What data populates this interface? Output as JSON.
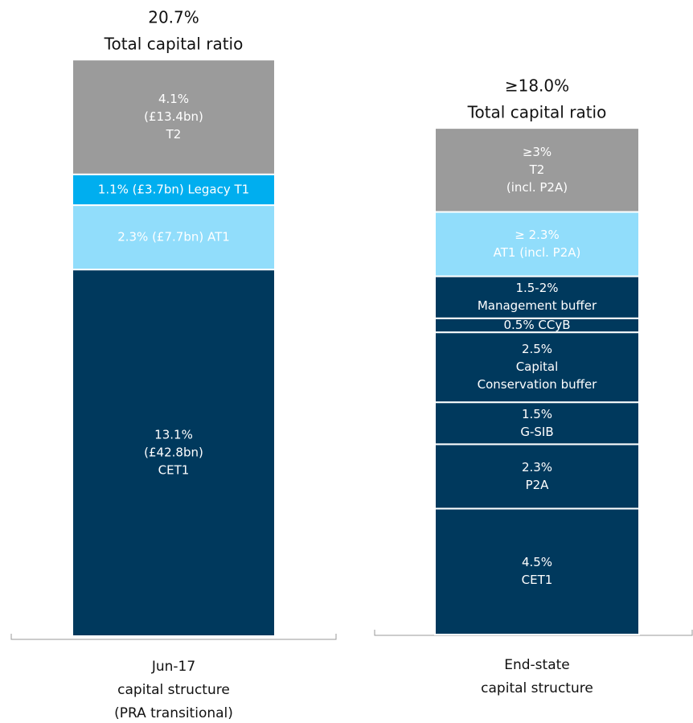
{
  "chart_data": {
    "type": "bar",
    "bars": [
      {
        "title": [
          "20.7%",
          "Total capital ratio"
        ],
        "category": [
          "Jun-17",
          "capital structure",
          "(PRA transitional)"
        ],
        "segments": [
          {
            "value": 13.1,
            "label": [
              "13.1%",
              "(£42.8bn)",
              "CET1"
            ],
            "color": "#00395d"
          },
          {
            "value": 2.3,
            "label": [
              "2.3% (£7.7bn) AT1"
            ],
            "color": "#91ddfb"
          },
          {
            "value": 1.1,
            "label": [
              "1.1% (£3.7bn) Legacy T1"
            ],
            "color": "#00aeef"
          },
          {
            "value": 4.1,
            "label": [
              "4.1%",
              "(£13.4bn)",
              "T2"
            ],
            "color": "#9b9b9b"
          }
        ]
      },
      {
        "title": [
          "≥18.0%",
          "Total capital ratio"
        ],
        "category": [
          "End-state",
          "capital structure"
        ],
        "segments": [
          {
            "value": 4.5,
            "label": [
              "4.5%",
              "CET1"
            ],
            "color": "#00395d"
          },
          {
            "value": 2.3,
            "label": [
              "2.3%",
              "P2A"
            ],
            "color": "#00395d"
          },
          {
            "value": 1.5,
            "label": [
              "1.5%",
              "G-SIB"
            ],
            "color": "#00395d"
          },
          {
            "value": 2.5,
            "label": [
              "2.5%",
              "Capital",
              "Conservation buffer"
            ],
            "color": "#00395d"
          },
          {
            "value": 0.5,
            "label": [
              "0.5% CCyB"
            ],
            "color": "#00395d"
          },
          {
            "value": 1.5,
            "label": [
              "1.5-2%",
              "Management buffer"
            ],
            "color": "#00395d"
          },
          {
            "value": 2.3,
            "label": [
              "≥ 2.3%",
              "AT1 (incl. P2A)"
            ],
            "color": "#91ddfb"
          },
          {
            "value": 3,
            "label": [
              "≥3%",
              "T2",
              "(incl. P2A)"
            ],
            "color": "#9b9b9b"
          }
        ]
      }
    ]
  }
}
